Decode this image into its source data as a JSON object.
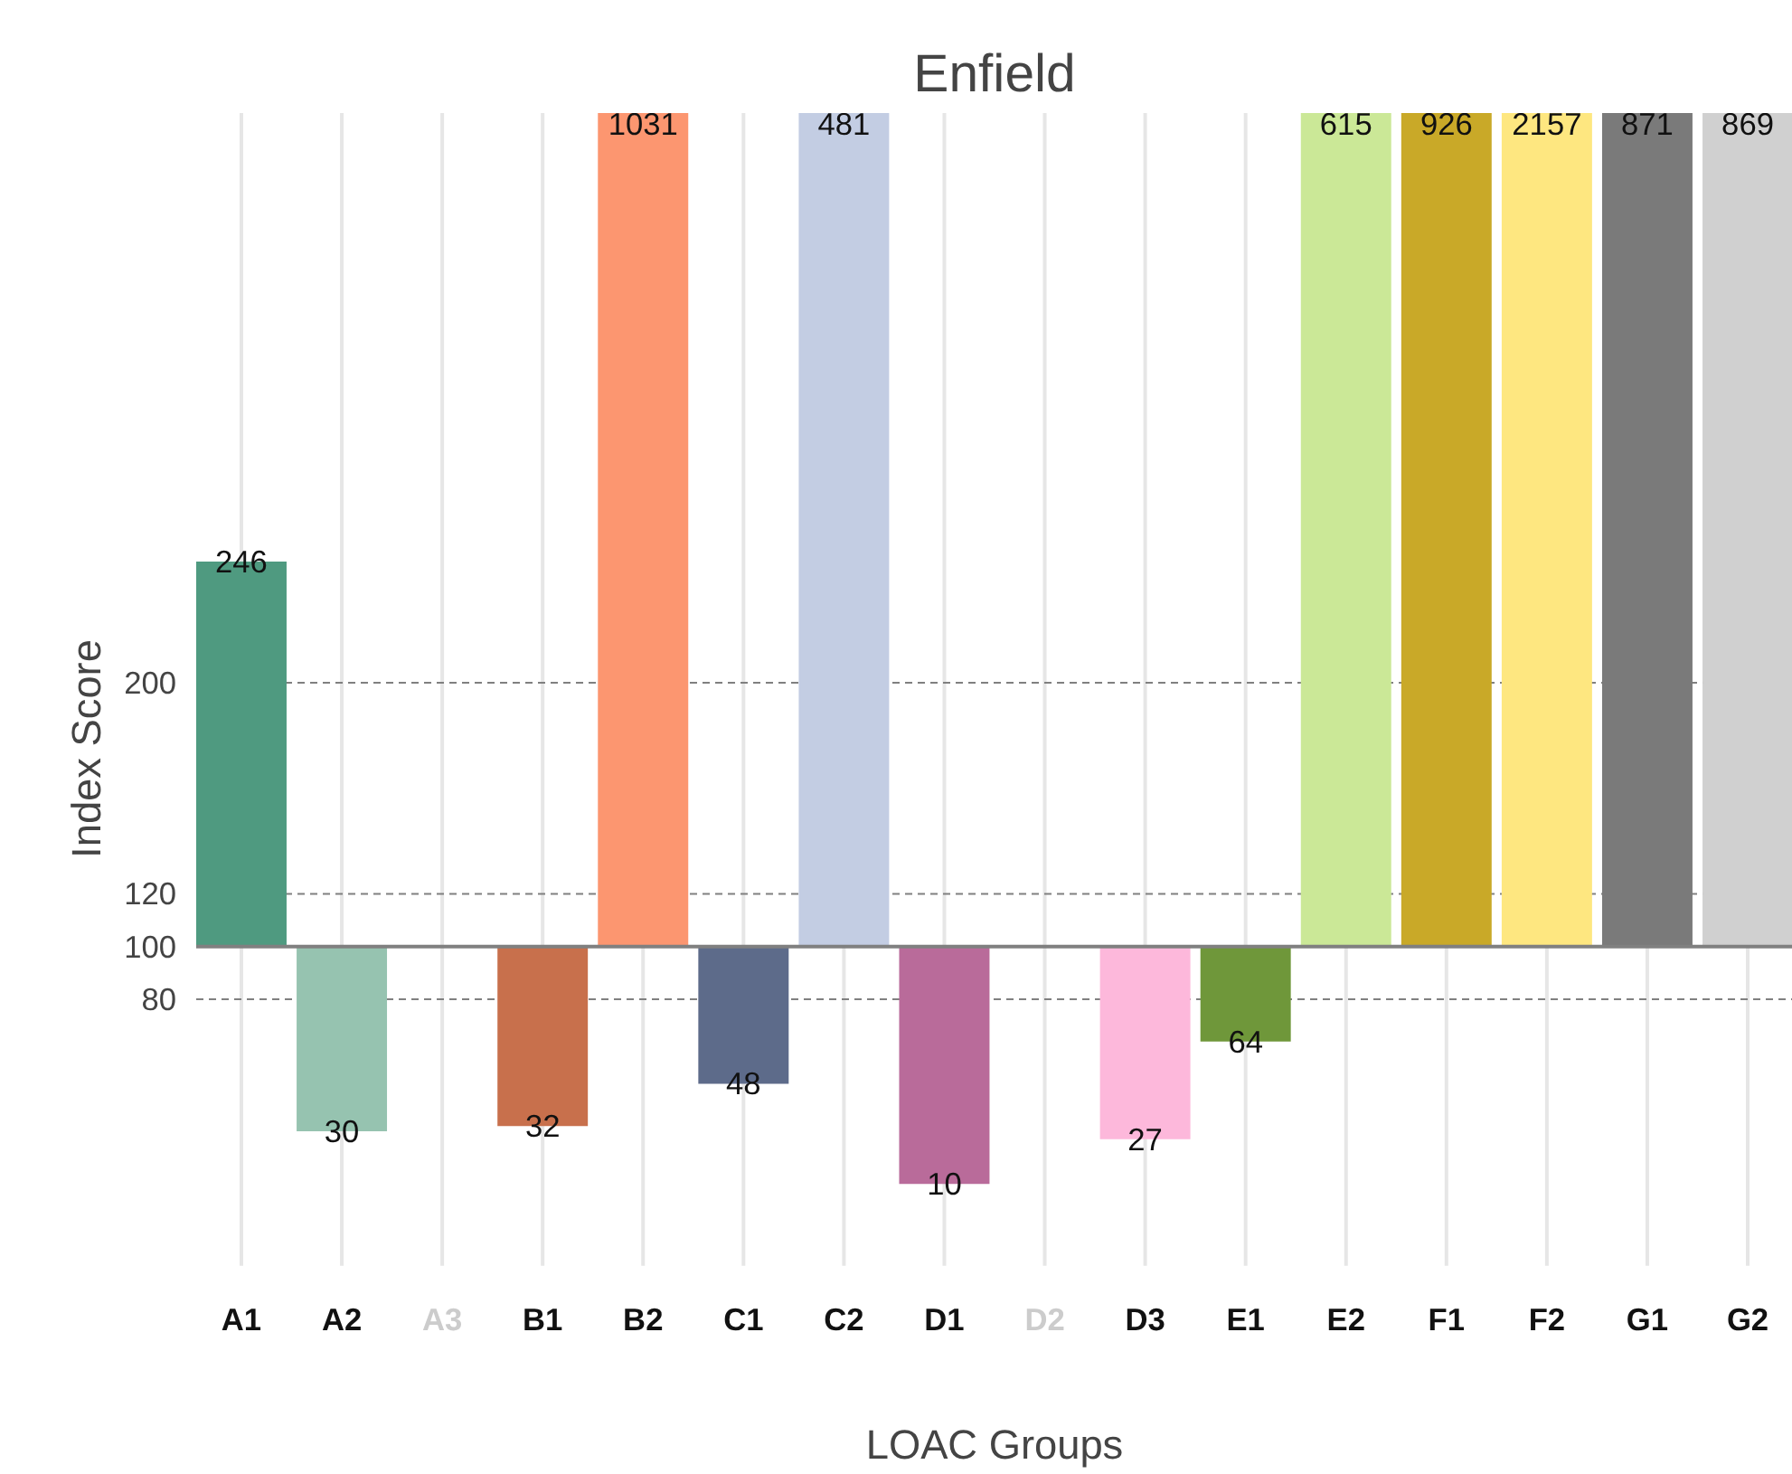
{
  "chart_data": {
    "type": "bar",
    "title": "Enfield",
    "xlabel": "LOAC Groups",
    "ylabel": "Index Score",
    "categories": [
      "A1",
      "A2",
      "A3",
      "B1",
      "B2",
      "C1",
      "C2",
      "D1",
      "D2",
      "D3",
      "E1",
      "E2",
      "F1",
      "F2",
      "G1",
      "G2"
    ],
    "base": [
      100,
      100,
      null,
      100,
      100,
      100,
      100,
      100,
      null,
      100,
      100,
      100,
      100,
      100,
      100,
      100
    ],
    "values": [
      146,
      -70,
      null,
      -68,
      931,
      -52,
      381,
      -90,
      null,
      -73,
      -36,
      515,
      826,
      2057,
      771,
      769
    ],
    "value_labels": [
      "246",
      "30",
      null,
      "32",
      "1031",
      "48",
      "481",
      "10",
      null,
      "27",
      "64",
      "615",
      "926",
      "2157",
      "871",
      "869"
    ],
    "colors": [
      "#4f9a80",
      "#96c3b0",
      "#cccccc",
      "#c8704c",
      "#fc9670",
      "#5d6b8a",
      "#c3cde3",
      "#b96b9a",
      "#cccccc",
      "#fdb8db",
      "#6f973a",
      "#cbe897",
      "#c9a928",
      "#fee780",
      "#7a7a7a",
      "#d0d0d0"
    ],
    "ylim": [
      -21,
      416
    ],
    "yticks": [
      80,
      100,
      120,
      200
    ],
    "ref_lines": [
      {
        "axis": "y",
        "value": 100,
        "line_style": "solid",
        "color": "#808080"
      },
      {
        "axis": "y",
        "value": 80,
        "line_style": "dashed",
        "color": "#808080"
      },
      {
        "axis": "y",
        "value": 120,
        "line_style": "dashed",
        "color": "#808080"
      },
      {
        "axis": "y",
        "value": 200,
        "line_style": "dashed",
        "color": "#808080"
      }
    ],
    "grid": "x"
  }
}
